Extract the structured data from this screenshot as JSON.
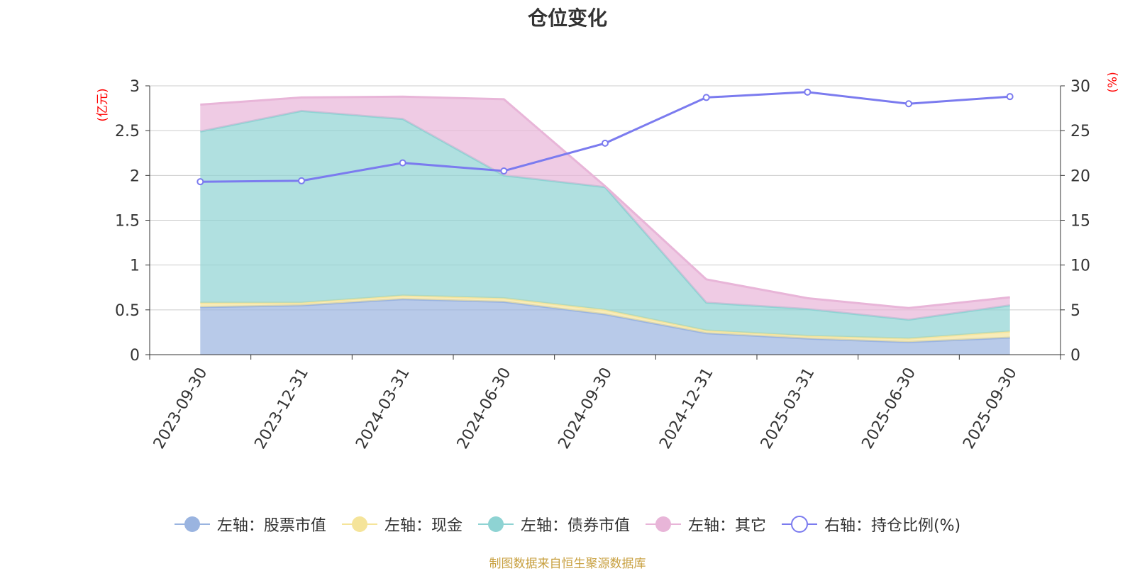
{
  "title": "仓位变化",
  "source_note": "制图数据来自恒生聚源数据库",
  "colors": {
    "stock": "#9ab4e0",
    "cash": "#f5e49a",
    "bond": "#8ed3d3",
    "other": "#e8b5d8",
    "ratio": "#7b7bef",
    "grid": "#cccccc",
    "axis": "#333333",
    "unit": "#ff0000"
  },
  "chart_data": {
    "type": "area",
    "title": "仓位变化",
    "categories": [
      "2023-09-30",
      "2023-12-31",
      "2024-03-31",
      "2024-06-30",
      "2024-09-30",
      "2024-12-31",
      "2025-03-31",
      "2025-06-30",
      "2025-09-30"
    ],
    "left_axis": {
      "unit_label": "(亿元)",
      "ylim": [
        0,
        3
      ],
      "ticks": [
        "0",
        "0.5",
        "1",
        "1.5",
        "2",
        "2.5",
        "3"
      ]
    },
    "right_axis": {
      "unit_label": "(%)",
      "ylim": [
        0,
        30
      ],
      "ticks": [
        "0",
        "5",
        "10",
        "15",
        "20",
        "25",
        "30"
      ]
    },
    "stacked": true,
    "series": [
      {
        "name": "左轴：股票市值",
        "key": "stock",
        "axis": "left",
        "type": "area",
        "values": [
          0.53,
          0.55,
          0.62,
          0.59,
          0.45,
          0.24,
          0.18,
          0.14,
          0.19
        ]
      },
      {
        "name": "左轴：现金",
        "key": "cash",
        "axis": "left",
        "type": "area",
        "values": [
          0.05,
          0.03,
          0.04,
          0.04,
          0.05,
          0.03,
          0.03,
          0.04,
          0.07
        ]
      },
      {
        "name": "左轴：债券市值",
        "key": "bond",
        "axis": "left",
        "type": "area",
        "values": [
          1.91,
          2.14,
          1.97,
          1.37,
          1.37,
          0.31,
          0.3,
          0.21,
          0.29
        ]
      },
      {
        "name": "左轴：其它",
        "key": "other",
        "axis": "left",
        "type": "area",
        "values": [
          0.3,
          0.15,
          0.25,
          0.85,
          0.01,
          0.26,
          0.12,
          0.13,
          0.09
        ]
      },
      {
        "name": "右轴：持仓比例(%)",
        "key": "ratio",
        "axis": "right",
        "type": "line",
        "values": [
          19.3,
          19.4,
          21.4,
          20.5,
          23.6,
          28.7,
          29.3,
          28.0,
          28.8
        ]
      }
    ]
  }
}
